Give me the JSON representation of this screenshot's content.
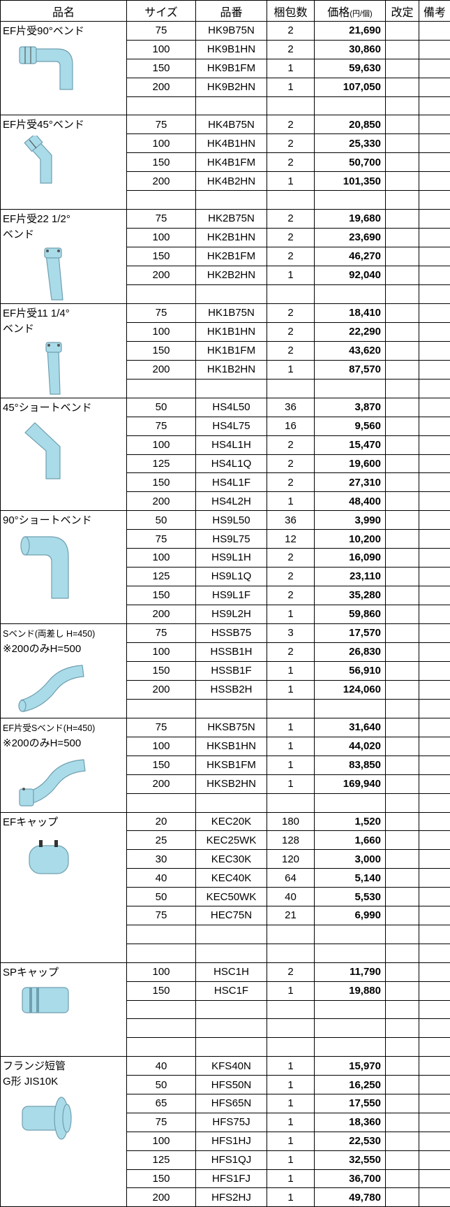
{
  "header": {
    "name": "品名",
    "size": "サイズ",
    "code": "品番",
    "qty": "梱包数",
    "price": "価格",
    "price_unit": "(円/個)",
    "revision": "改定",
    "remarks": "備考"
  },
  "groups": [
    {
      "name": [
        "EF片受90°ベンド"
      ],
      "rows": [
        [
          "75",
          "HK9B75N",
          "2",
          "21,690"
        ],
        [
          "100",
          "HK9B1HN",
          "2",
          "30,860"
        ],
        [
          "150",
          "HK9B1FM",
          "1",
          "59,630"
        ],
        [
          "200",
          "HK9B2HN",
          "1",
          "107,050"
        ]
      ]
    },
    {
      "name": [
        "EF片受45°ベンド"
      ],
      "rows": [
        [
          "75",
          "HK4B75N",
          "2",
          "20,850"
        ],
        [
          "100",
          "HK4B1HN",
          "2",
          "25,330"
        ],
        [
          "150",
          "HK4B1FM",
          "2",
          "50,700"
        ],
        [
          "200",
          "HK4B2HN",
          "1",
          "101,350"
        ]
      ]
    },
    {
      "name": [
        "EF片受22 1/2°",
        "ベンド"
      ],
      "rows": [
        [
          "75",
          "HK2B75N",
          "2",
          "19,680"
        ],
        [
          "100",
          "HK2B1HN",
          "2",
          "23,690"
        ],
        [
          "150",
          "HK2B1FM",
          "2",
          "46,270"
        ],
        [
          "200",
          "HK2B2HN",
          "1",
          "92,040"
        ]
      ]
    },
    {
      "name": [
        "EF片受11 1/4°",
        "ベンド"
      ],
      "rows": [
        [
          "75",
          "HK1B75N",
          "2",
          "18,410"
        ],
        [
          "100",
          "HK1B1HN",
          "2",
          "22,290"
        ],
        [
          "150",
          "HK1B1FM",
          "2",
          "43,620"
        ],
        [
          "200",
          "HK1B2HN",
          "1",
          "87,570"
        ]
      ]
    },
    {
      "name": [
        "45°ショートベンド"
      ],
      "rows": [
        [
          "50",
          "HS4L50",
          "36",
          "3,870"
        ],
        [
          "75",
          "HS4L75",
          "16",
          "9,560"
        ],
        [
          "100",
          "HS4L1H",
          "2",
          "15,470"
        ],
        [
          "125",
          "HS4L1Q",
          "2",
          "19,600"
        ],
        [
          "150",
          "HS4L1F",
          "2",
          "27,310"
        ],
        [
          "200",
          "HS4L2H",
          "1",
          "48,400"
        ]
      ]
    },
    {
      "name": [
        "90°ショートベンド"
      ],
      "rows": [
        [
          "50",
          "HS9L50",
          "36",
          "3,990"
        ],
        [
          "75",
          "HS9L75",
          "12",
          "10,200"
        ],
        [
          "100",
          "HS9L1H",
          "2",
          "16,090"
        ],
        [
          "125",
          "HS9L1Q",
          "2",
          "23,110"
        ],
        [
          "150",
          "HS9L1F",
          "2",
          "35,280"
        ],
        [
          "200",
          "HS9L2H",
          "1",
          "59,860"
        ]
      ]
    },
    {
      "name": [
        "Sベンド(両差し H=450)",
        "※200のみH=500"
      ],
      "rows": [
        [
          "75",
          "HSSB75",
          "3",
          "17,570"
        ],
        [
          "100",
          "HSSB1H",
          "2",
          "26,830"
        ],
        [
          "150",
          "HSSB1F",
          "1",
          "56,910"
        ],
        [
          "200",
          "HSSB2H",
          "1",
          "124,060"
        ]
      ]
    },
    {
      "name": [
        "EF片受Sベンド(H=450)",
        "※200のみH=500"
      ],
      "rows": [
        [
          "75",
          "HKSB75N",
          "1",
          "31,640"
        ],
        [
          "100",
          "HKSB1HN",
          "1",
          "44,020"
        ],
        [
          "150",
          "HKSB1FM",
          "1",
          "83,850"
        ],
        [
          "200",
          "HKSB2HN",
          "1",
          "169,940"
        ]
      ]
    },
    {
      "name": [
        "EFキャップ"
      ],
      "rows": [
        [
          "20",
          "KEC20K",
          "180",
          "1,520"
        ],
        [
          "25",
          "KEC25WK",
          "128",
          "1,660"
        ],
        [
          "30",
          "KEC30K",
          "120",
          "3,000"
        ],
        [
          "40",
          "KEC40K",
          "64",
          "5,140"
        ],
        [
          "50",
          "KEC50WK",
          "40",
          "5,530"
        ],
        [
          "75",
          "HEC75N",
          "21",
          "6,990"
        ]
      ]
    },
    {
      "name": [
        "SPキャップ"
      ],
      "rows": [
        [
          "100",
          "HSC1H",
          "2",
          "11,790"
        ],
        [
          "150",
          "HSC1F",
          "1",
          "19,880"
        ]
      ]
    },
    {
      "name": [
        "フランジ短管",
        "G形 JIS10K"
      ],
      "rows": [
        [
          "40",
          "KFS40N",
          "1",
          "15,970"
        ],
        [
          "50",
          "HFS50N",
          "1",
          "16,250"
        ],
        [
          "65",
          "HFS65N",
          "1",
          "17,550"
        ],
        [
          "75",
          "HFS75J",
          "1",
          "18,360"
        ],
        [
          "100",
          "HFS1HJ",
          "1",
          "22,530"
        ],
        [
          "125",
          "HFS1QJ",
          "1",
          "32,550"
        ],
        [
          "150",
          "HFS1FJ",
          "1",
          "36,700"
        ],
        [
          "200",
          "HFS2HJ",
          "1",
          "49,780"
        ]
      ]
    }
  ]
}
